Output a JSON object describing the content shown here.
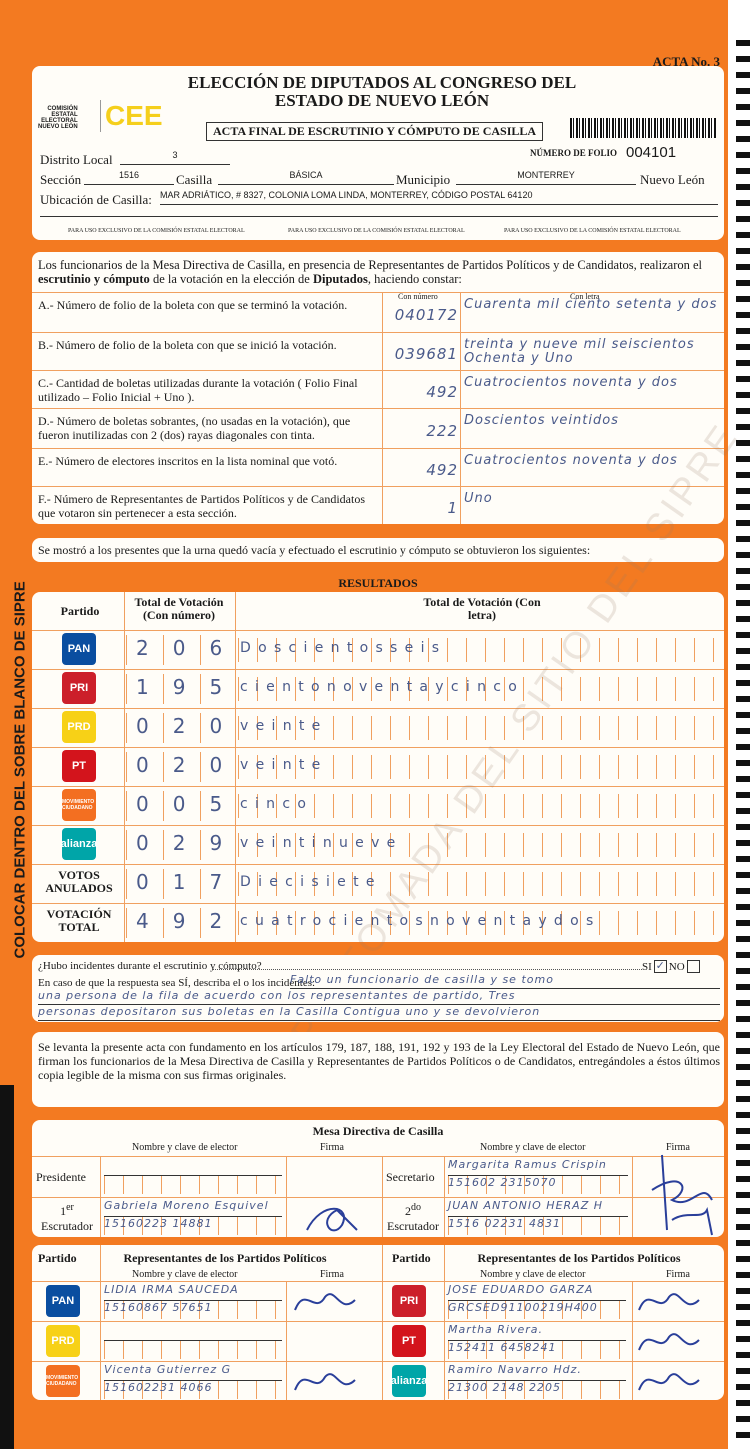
{
  "side_text": "COLOCAR DENTRO DEL SOBRE BLANCO DE SIPRE",
  "watermark": "COPIA TOMADA DEL SITIO DEL SIPRE",
  "header": {
    "acta_no": "ACTA No. 3",
    "title_line1": "ELECCIÓN DE DIPUTADOS AL CONGRESO DEL",
    "title_line2": "ESTADO DE NUEVO LEÓN",
    "org": [
      "COMISIÓN",
      "ESTATAL",
      "ELECTORAL",
      "NUEVO LEÓN"
    ],
    "logo": "CEE",
    "subtitle": "ACTA FINAL DE ESCRUTINIO Y CÓMPUTO DE CASILLA",
    "folio_label": "NÚMERO DE FOLIO",
    "folio": "004101",
    "distrito_label": "Distrito Local",
    "distrito": "3",
    "seccion_label": "Sección",
    "seccion": "1516",
    "casilla_label": "Casilla",
    "casilla": "BÁSICA",
    "municipio_label": "Municipio",
    "municipio": "MONTERREY",
    "estado": "Nuevo León",
    "ubicacion_label": "Ubicación de Casilla:",
    "ubicacion": "MAR ADRIÁTICO, # 8327, COLONIA LOMA LINDA, MONTERREY, CÓDIGO POSTAL 64120",
    "exclusive": "PARA USO EXCLUSIVO DE LA COMISIÓN ESTATAL ELECTORAL"
  },
  "constancia": {
    "intro_a": "Los funcionarios de la Mesa Directiva de Casilla, en presencia de Representantes de Partidos Políticos  y de Candidatos, realizaron el ",
    "intro_b": "escrutinio y cómputo",
    "intro_c": " de la votación en la elección de ",
    "intro_d": "Diputados",
    "intro_e": ", haciendo constar:",
    "col_numero": "Con número",
    "col_letra": "Con letra",
    "items": [
      {
        "label": "A.- Número de folio de la boleta con que se terminó la votación.",
        "numero": "040172",
        "letra": "Cuarenta mil ciento setenta y dos"
      },
      {
        "label": "B.- Número de folio de la boleta con que se inició la votación.",
        "numero": "039681",
        "letra": "treinta y nueve mil seiscientos Ochenta y Uno"
      },
      {
        "label": "C.- Cantidad de boletas utilizadas durante la votación ( Folio Final utilizado – Folio Inicial + Uno ).",
        "numero": "492",
        "letra": "Cuatrocientos noventa y dos"
      },
      {
        "label": "D.- Número de boletas sobrantes, (no usadas en la votación), que fueron inutilizadas con 2 (dos) rayas diagonales con tinta.",
        "numero": "222",
        "letra": "Doscientos veintidos"
      },
      {
        "label": "E.- Número de electores inscritos en la lista nominal que votó.",
        "numero": "492",
        "letra": "Cuatrocientos noventa y dos"
      },
      {
        "label": "F.- Número de Representantes de Partidos Políticos y de Candidatos que votaron sin pertenecer a esta sección.",
        "numero": "1",
        "letra": "Uno"
      }
    ]
  },
  "statement": "Se mostró a los presentes que la urna quedó vacía y efectuado el escrutinio y cómputo se obtuvieron los siguientes:",
  "resultados": {
    "title": "RESULTADOS",
    "col_partido": "Partido",
    "col_numero": "Total de Votación (Con número)",
    "col_letra": "Total de Votación (Con letra)",
    "rows": [
      {
        "partido": "PAN",
        "numero": "206",
        "letra": "Doscientosseis",
        "color": "#0a4ea0"
      },
      {
        "partido": "PRI",
        "numero": "195",
        "letra": "cientonoventaycinco",
        "color": "#cc1f2a"
      },
      {
        "partido": "PRD",
        "numero": "020",
        "letra": "veinte",
        "color": "#f7d117"
      },
      {
        "partido": "PT",
        "numero": "020",
        "letra": "veinte",
        "color": "#d3141c"
      },
      {
        "partido": "MOVIMIENTO CIUDADANO",
        "numero": "005",
        "letra": "cinco",
        "color": "#f36f21"
      },
      {
        "partido": "alianza",
        "numero": "029",
        "letra": "veintinueve",
        "color": "#00a5a8"
      },
      {
        "partido": "VOTOS ANULADOS",
        "numero": "017",
        "letra": "Diecisiete"
      },
      {
        "partido": "VOTACIÓN TOTAL",
        "numero": "492",
        "letra": "cuatrocientosnoventaydos"
      }
    ]
  },
  "incidentes": {
    "question": "¿Hubo incidentes durante el escrutinio y cómputo?",
    "si": "SI",
    "no": "NO",
    "answer": "SI",
    "describe": "En caso de que la respuesta sea SÍ, describa el o los incidentes:",
    "text1": "Falto un funcionario de casilla y se tomo",
    "text2": "una persona de la fila de acuerdo con los representantes de partido, Tres",
    "text3": "personas depositaron sus boletas en la Casilla Contigua uno y se devolvieron"
  },
  "legal": "Se levanta la presente acta con fundamento en los artículos 179, 187, 188, 191, 192 y 193 de la Ley Electoral del Estado de Nuevo León, que firman los funcionarios de la Mesa Directiva de Casilla y Representantes de  Partidos Políticos o de Candidatos, entregándoles a éstos últimos copia legible de la misma con sus firmas originales.",
  "mesa": {
    "title": "Mesa Directiva de Casilla",
    "col_nombre": "Nombre y clave de elector",
    "col_firma": "Firma",
    "presidente": {
      "label": "Presidente",
      "nombre": "",
      "clave": ""
    },
    "secretario": {
      "label": "Secretario",
      "nombre": "Margarita Ramus Crispin",
      "clave": "151602 2315070"
    },
    "escrutador1": {
      "label_sup": "er",
      "label_pre": "1",
      "label": "Escrutador",
      "nombre": "Gabriela Moreno Esquivel",
      "clave": "15160223 14881"
    },
    "escrutador2": {
      "label_sup": "do",
      "label_pre": "2",
      "label": "Escrutador",
      "nombre": "JUAN ANTONIO HERAZ H",
      "clave": "1516 02231 4831"
    }
  },
  "representantes": {
    "col_partido": "Partido",
    "col_rep": "Representantes de los Partidos Políticos",
    "col_nombre": "Nombre y clave de elector",
    "col_firma": "Firma",
    "left": [
      {
        "partido": "PAN",
        "nombre": "LIDIA IRMA SAUCEDA",
        "clave": "15160867 57651",
        "color": "#0a4ea0"
      },
      {
        "partido": "PRD",
        "nombre": "",
        "clave": "",
        "color": "#f7d117"
      },
      {
        "partido": "MOVIMIENTO CIUDADANO",
        "nombre": "Vicenta Gutierrez G",
        "clave": "151602231 4066",
        "color": "#f36f21"
      }
    ],
    "right": [
      {
        "partido": "PRI",
        "nombre": "JOSE EDUARDO GARZA",
        "clave": "GRCSED91100219H400",
        "color": "#cc1f2a"
      },
      {
        "partido": "PT",
        "nombre": "Martha Rivera.",
        "clave": "152411 6458241",
        "color": "#d3141c"
      },
      {
        "partido": "alianza",
        "nombre": "Ramiro Navarro Hdz.",
        "clave": "21300 2148 2205",
        "color": "#00a5a8"
      }
    ]
  }
}
